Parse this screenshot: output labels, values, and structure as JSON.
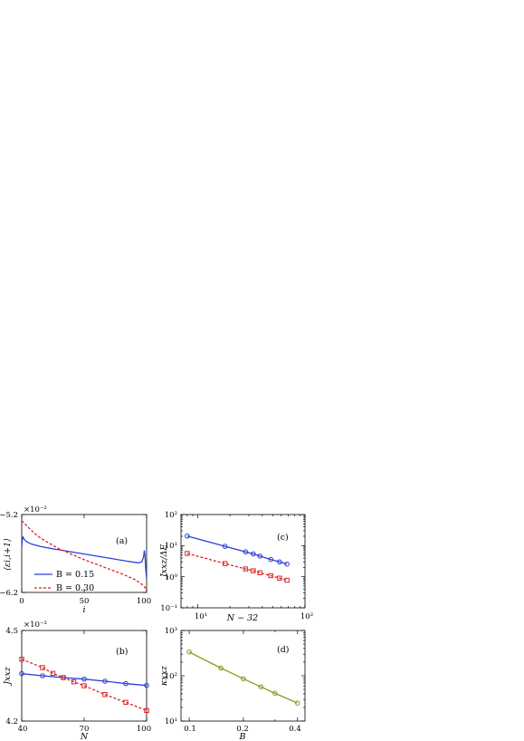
{
  "chart_data": [
    {
      "panel": "a",
      "type": "line",
      "panel_label": "(a)",
      "xlabel": "i",
      "ylabel": "⟨εi,i+1⟩",
      "exponent_label": "×10⁻²",
      "xlim": [
        0,
        100
      ],
      "ylim": [
        -6.2,
        -5.2
      ],
      "x_ticks": [
        "0",
        "50",
        "100"
      ],
      "y_ticks": [
        "−5.2",
        "−6.2"
      ],
      "legend": "center-left",
      "series": [
        {
          "name": "B = 0.15",
          "color": "#2a40d8",
          "dash": "solid",
          "x": [
            0,
            0.5,
            1,
            2,
            4,
            8,
            15,
            25,
            40,
            55,
            70,
            85,
            93,
            96,
            97.5,
            98.2,
            98.7,
            99.3,
            100
          ],
          "y": [
            -5.62,
            -5.52,
            -5.49,
            -5.52,
            -5.55,
            -5.58,
            -5.61,
            -5.64,
            -5.68,
            -5.72,
            -5.76,
            -5.8,
            -5.82,
            -5.81,
            -5.75,
            -5.66,
            -5.72,
            -5.9,
            -6.02
          ]
        },
        {
          "name": "B = 0.30",
          "color": "#e02020",
          "dash": "dashed",
          "x": [
            0,
            2,
            5,
            10,
            15,
            20,
            30,
            40,
            50,
            60,
            70,
            80,
            90,
            95,
            98,
            100
          ],
          "y": [
            -5.28,
            -5.31,
            -5.36,
            -5.44,
            -5.5,
            -5.55,
            -5.64,
            -5.71,
            -5.78,
            -5.84,
            -5.9,
            -5.96,
            -6.03,
            -6.08,
            -6.12,
            -6.16
          ]
        }
      ]
    },
    {
      "panel": "b",
      "type": "line",
      "panel_label": "(b)",
      "xlabel": "N",
      "ylabel": "Jxxz",
      "exponent_label": "×10⁻³",
      "xlim": [
        40,
        100
      ],
      "ylim": [
        4.2,
        4.5
      ],
      "x_ticks": [
        "40",
        "70",
        "100"
      ],
      "y_ticks": [
        "4.5",
        "4.2"
      ],
      "series": [
        {
          "color": "#2a40d8",
          "dash": "solid",
          "marker": "circle",
          "x": [
            40,
            50,
            60,
            70,
            80,
            90,
            100
          ],
          "y": [
            4.357,
            4.35,
            4.344,
            4.339,
            4.332,
            4.324,
            4.318
          ]
        },
        {
          "color": "#e02020",
          "dash": "dashed",
          "marker": "square",
          "x": [
            40,
            50,
            55,
            60,
            65,
            70,
            80,
            90,
            100
          ],
          "y": [
            4.405,
            4.377,
            4.358,
            4.344,
            4.33,
            4.317,
            4.288,
            4.262,
            4.235
          ]
        }
      ]
    },
    {
      "panel": "c",
      "type": "line",
      "panel_label": "(c)",
      "xlabel": "N − 32",
      "ylabel": "Jxxz/ΔE",
      "xscale": "log",
      "yscale": "log",
      "xlim": [
        7,
        100
      ],
      "ylim": [
        0.1,
        100
      ],
      "x_ticks": [
        "10¹",
        "10²"
      ],
      "y_ticks": [
        "10²",
        "10¹",
        "10⁰",
        "10⁻¹"
      ],
      "series": [
        {
          "color": "#2a40d8",
          "dash": "solid",
          "marker": "circle",
          "x": [
            8,
            18,
            28,
            33,
            38,
            48,
            58,
            68
          ],
          "y": [
            20.3,
            9.5,
            6.3,
            5.4,
            4.6,
            3.6,
            3.0,
            2.55
          ]
        },
        {
          "color": "#e02020",
          "dash": "dashed",
          "marker": "square",
          "x": [
            8,
            18,
            28,
            33,
            38,
            48,
            58,
            68
          ],
          "y": [
            5.6,
            2.65,
            1.78,
            1.55,
            1.34,
            1.08,
            0.9,
            0.77
          ]
        }
      ]
    },
    {
      "panel": "d",
      "type": "line",
      "panel_label": "(d)",
      "xlabel": "B",
      "ylabel": "κxxz",
      "xscale": "log",
      "yscale": "log",
      "xlim": [
        0.09,
        0.44
      ],
      "ylim": [
        10,
        1000
      ],
      "x_ticks": [
        "0.1",
        "0.2",
        "0.4"
      ],
      "y_ticks": [
        "10³",
        "10²",
        "10¹"
      ],
      "series": [
        {
          "color": "#8a9a1a",
          "dash": "solid",
          "marker": "circle",
          "x": [
            0.1,
            0.15,
            0.2,
            0.25,
            0.3,
            0.4
          ],
          "y": [
            334,
            148,
            86,
            57,
            41,
            25
          ]
        }
      ]
    }
  ]
}
